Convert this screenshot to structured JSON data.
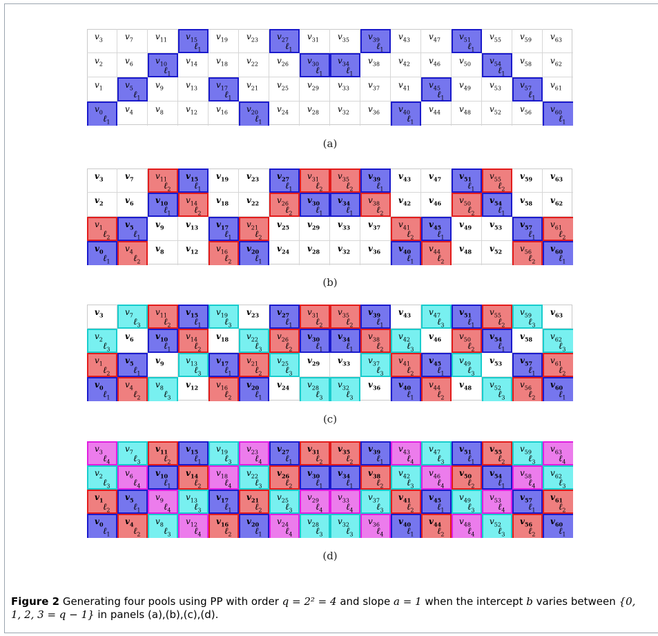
{
  "figure": {
    "label": "Figure 2",
    "caption_text": " Generating four pools using PP with order ",
    "caption_math1": "q = 2² = 4",
    "caption_mid": " and slope ",
    "caption_math2": "a = 1",
    "caption_mid2": " when the intercept ",
    "caption_math3": "b",
    "caption_mid3": " varies between ",
    "caption_math4": "{0, 1, 2, 3 = q − 1}",
    "caption_end": " in panels (a),(b),(c),(d)."
  },
  "grid": {
    "rows": 4,
    "cols": 16,
    "cell_labels": "v_i with i = 4·column + (3 − row) for i from 0 to 63",
    "pool_label_prefix": "ℓ"
  },
  "panels": [
    {
      "caption": "(a)",
      "pools": {
        "1": [
          0,
          5,
          10,
          15,
          17,
          20,
          27,
          30,
          34,
          39,
          40,
          45,
          51,
          54,
          57,
          60
        ]
      }
    },
    {
      "caption": "(b)",
      "pools": {
        "1": [
          0,
          5,
          10,
          15,
          17,
          20,
          27,
          30,
          34,
          39,
          40,
          45,
          51,
          54,
          57,
          60
        ],
        "2": [
          1,
          4,
          11,
          14,
          16,
          21,
          26,
          31,
          35,
          38,
          41,
          44,
          50,
          55,
          56,
          61
        ]
      }
    },
    {
      "caption": "(c)",
      "pools": {
        "1": [
          0,
          5,
          10,
          15,
          17,
          20,
          27,
          30,
          34,
          39,
          40,
          45,
          51,
          54,
          57,
          60
        ],
        "2": [
          1,
          4,
          11,
          14,
          16,
          21,
          26,
          31,
          35,
          38,
          41,
          44,
          50,
          55,
          56,
          61
        ],
        "3": [
          2,
          7,
          8,
          13,
          19,
          22,
          25,
          28,
          32,
          37,
          42,
          47,
          49,
          52,
          59,
          62
        ]
      }
    },
    {
      "caption": "(d)",
      "pools": {
        "1": [
          0,
          5,
          10,
          15,
          17,
          20,
          27,
          30,
          34,
          39,
          40,
          45,
          51,
          54,
          57,
          60
        ],
        "2": [
          1,
          4,
          11,
          14,
          16,
          21,
          26,
          31,
          35,
          38,
          41,
          44,
          50,
          55,
          56,
          61
        ],
        "3": [
          2,
          7,
          8,
          13,
          19,
          22,
          25,
          28,
          32,
          37,
          42,
          47,
          49,
          52,
          59,
          62
        ],
        "4": [
          3,
          6,
          9,
          12,
          18,
          23,
          24,
          29,
          33,
          36,
          43,
          46,
          48,
          53,
          58,
          63
        ]
      }
    }
  ],
  "colors": {
    "pool_1": "#7676ee",
    "pool_2": "#ef7f7f",
    "pool_3": "#78f0f0",
    "pool_4": "#ec7cec"
  }
}
